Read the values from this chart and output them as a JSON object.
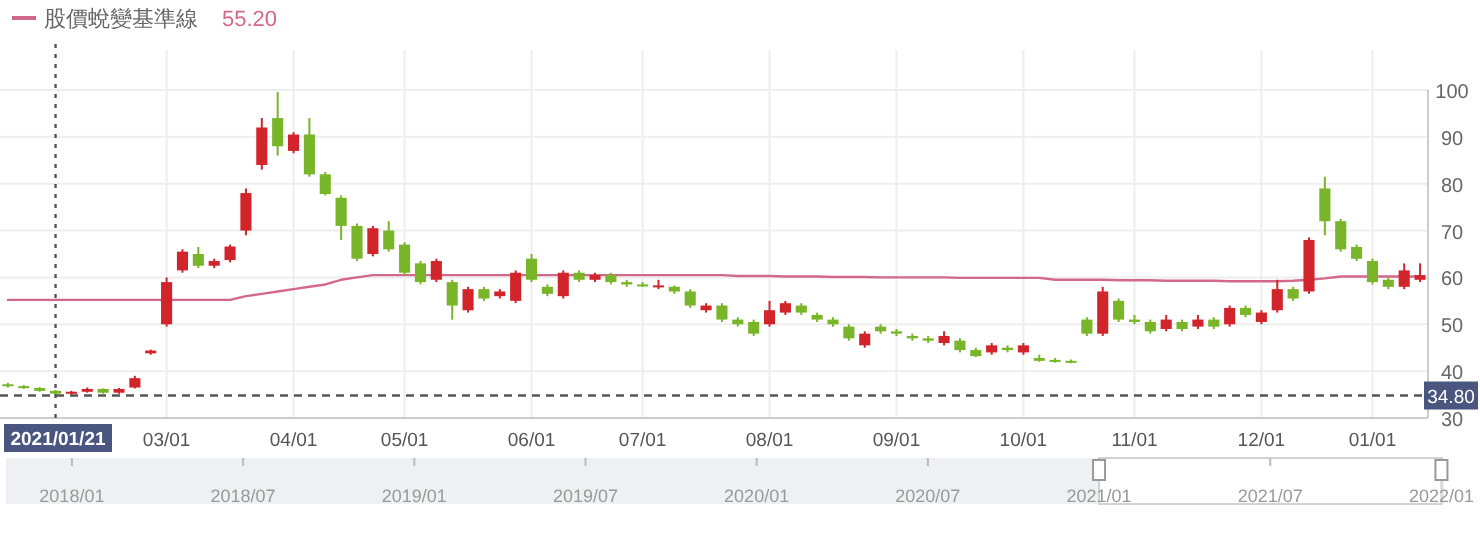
{
  "chart_data": [
    {
      "type": "candlestick",
      "categories": [
        null,
        null,
        null,
        "2021/01/21",
        null,
        null,
        null,
        null,
        null,
        null,
        "03/01",
        null,
        null,
        null,
        null,
        null,
        null,
        null,
        "04/01",
        null,
        null,
        null,
        null,
        null,
        null,
        "05/01",
        null,
        null,
        null,
        null,
        null,
        null,
        null,
        "06/01",
        null,
        null,
        null,
        null,
        null,
        null,
        "07/01",
        null,
        null,
        null,
        null,
        null,
        null,
        null,
        "08/01",
        null,
        null,
        null,
        null,
        null,
        null,
        null,
        "09/01",
        null,
        null,
        null,
        null,
        null,
        null,
        null,
        "10/01",
        null,
        null,
        null,
        null,
        null,
        null,
        "11/01",
        null,
        null,
        null,
        null,
        null,
        null,
        null,
        "12/01",
        null,
        null,
        null,
        null,
        null,
        null,
        "01/01",
        null,
        null,
        null
      ],
      "ohlc": [
        [
          37.2,
          37.5,
          36.5,
          36.8
        ],
        [
          36.8,
          37.0,
          36.2,
          36.4
        ],
        [
          36.4,
          36.6,
          35.6,
          35.8
        ],
        [
          35.8,
          36.0,
          34.8,
          35.2
        ],
        [
          35.2,
          35.8,
          35.0,
          35.6
        ],
        [
          35.6,
          36.5,
          35.4,
          36.2
        ],
        [
          36.2,
          36.3,
          35.2,
          35.4
        ],
        [
          35.4,
          36.4,
          35.2,
          36.2
        ],
        [
          36.5,
          39.0,
          36.3,
          38.5
        ],
        [
          43.8,
          44.6,
          43.5,
          44.4
        ],
        [
          50.0,
          60.0,
          49.5,
          59.0
        ],
        [
          61.5,
          66.0,
          61.0,
          65.5
        ],
        [
          65.0,
          66.5,
          62.0,
          62.5
        ],
        [
          62.5,
          64.0,
          62.0,
          63.5
        ],
        [
          63.7,
          67.0,
          63.2,
          66.6
        ],
        [
          70.0,
          79.0,
          69.0,
          78.0
        ],
        [
          84.0,
          94.0,
          83.0,
          92.0
        ],
        [
          94.0,
          99.6,
          86.0,
          88.0
        ],
        [
          87.0,
          91.0,
          86.5,
          90.5
        ],
        [
          90.5,
          94.0,
          81.5,
          82.0
        ],
        [
          82.0,
          82.5,
          77.5,
          77.8
        ],
        [
          77.0,
          77.5,
          68.0,
          71.0
        ],
        [
          71.0,
          71.5,
          63.5,
          64.0
        ],
        [
          65.0,
          71.0,
          64.5,
          70.5
        ],
        [
          70.0,
          72.0,
          65.5,
          66.0
        ],
        [
          67.0,
          67.5,
          60.5,
          61.0
        ],
        [
          63.0,
          63.5,
          58.5,
          59.0
        ],
        [
          59.5,
          64.0,
          59.0,
          63.5
        ],
        [
          59.0,
          59.5,
          51.0,
          54.0
        ],
        [
          53.0,
          58.0,
          52.5,
          57.5
        ],
        [
          57.5,
          58.0,
          55.0,
          55.5
        ],
        [
          56.0,
          57.5,
          55.5,
          57.0
        ],
        [
          55.0,
          61.5,
          54.5,
          61.0
        ],
        [
          64.0,
          65.0,
          59.0,
          59.5
        ],
        [
          58.0,
          58.5,
          56.0,
          56.5
        ],
        [
          56.0,
          61.5,
          55.5,
          61.0
        ],
        [
          61.0,
          61.5,
          59.0,
          59.5
        ],
        [
          59.5,
          61.0,
          59.0,
          60.5
        ],
        [
          60.5,
          61.0,
          58.5,
          59.0
        ],
        [
          59.0,
          59.5,
          58.0,
          58.5
        ],
        [
          58.5,
          59.0,
          58.0,
          58.2
        ],
        [
          57.9,
          59.5,
          57.5,
          58.3
        ],
        [
          58.0,
          58.3,
          56.5,
          57.0
        ],
        [
          57.0,
          57.5,
          53.5,
          54.0
        ],
        [
          53.0,
          54.5,
          52.5,
          54.0
        ],
        [
          54.0,
          54.5,
          50.5,
          51.0
        ],
        [
          51.0,
          51.5,
          49.5,
          50.0
        ],
        [
          50.5,
          51.0,
          47.5,
          48.0
        ],
        [
          50.0,
          55.0,
          49.5,
          53.0
        ],
        [
          52.5,
          55.0,
          52.0,
          54.5
        ],
        [
          54.0,
          54.5,
          52.0,
          52.5
        ],
        [
          52.0,
          52.5,
          50.5,
          51.0
        ],
        [
          51.0,
          51.5,
          49.5,
          50.0
        ],
        [
          49.5,
          50.0,
          46.5,
          47.0
        ],
        [
          45.5,
          48.5,
          45.0,
          48.0
        ],
        [
          49.5,
          50.0,
          48.0,
          48.5
        ],
        [
          48.5,
          49.0,
          47.5,
          48.0
        ],
        [
          47.5,
          48.0,
          46.5,
          47.0
        ],
        [
          47.0,
          47.5,
          46.0,
          46.5
        ],
        [
          46.0,
          48.5,
          45.5,
          47.5
        ],
        [
          46.5,
          47.0,
          44.0,
          44.5
        ],
        [
          44.5,
          45.0,
          43.0,
          43.2
        ],
        [
          44.0,
          46.0,
          43.5,
          45.5
        ],
        [
          45.0,
          45.5,
          44.0,
          44.5
        ],
        [
          44.0,
          46.0,
          43.5,
          45.5
        ],
        [
          42.8,
          43.5,
          42.0,
          42.2
        ],
        [
          42.4,
          42.8,
          41.8,
          42.1
        ],
        [
          42.2,
          42.5,
          41.7,
          42.0
        ],
        [
          51.0,
          51.5,
          47.5,
          48.0
        ],
        [
          48.0,
          58.0,
          47.5,
          57.0
        ],
        [
          55.0,
          55.5,
          50.5,
          51.0
        ],
        [
          51.0,
          52.0,
          50.0,
          50.5
        ],
        [
          50.5,
          51.0,
          48.0,
          48.5
        ],
        [
          49.0,
          52.0,
          48.5,
          51.0
        ],
        [
          50.5,
          51.0,
          48.5,
          49.0
        ],
        [
          49.5,
          52.0,
          49.0,
          51.0
        ],
        [
          51.0,
          51.5,
          49.0,
          49.5
        ],
        [
          50.0,
          54.0,
          49.5,
          53.5
        ],
        [
          53.5,
          54.0,
          51.5,
          52.0
        ],
        [
          50.5,
          53.0,
          50.0,
          52.5
        ],
        [
          53.0,
          59.5,
          52.5,
          57.5
        ],
        [
          57.5,
          58.0,
          55.0,
          55.5
        ],
        [
          57.0,
          68.5,
          56.5,
          68.0
        ],
        [
          79.0,
          81.5,
          69.0,
          72.0
        ],
        [
          72.0,
          72.5,
          65.5,
          66.0
        ],
        [
          66.5,
          67.0,
          63.5,
          64.0
        ],
        [
          63.5,
          64.0,
          58.5,
          59.0
        ],
        [
          59.5,
          60.0,
          57.5,
          58.0
        ],
        [
          58.0,
          63.0,
          57.5,
          61.5
        ],
        [
          59.5,
          63.0,
          59.0,
          60.5
        ]
      ],
      "colors": [
        "#79b528",
        "#79b528",
        "#79b528",
        "#79b528",
        "#d1242b",
        "#d1242b",
        "#79b528",
        "#d1242b",
        "#d1242b",
        "#d1242b",
        "#d1242b",
        "#d1242b",
        "#79b528",
        "#d1242b",
        "#d1242b",
        "#d1242b",
        "#d1242b",
        "#79b528",
        "#d1242b",
        "#79b528",
        "#79b528",
        "#79b528",
        "#79b528",
        "#d1242b",
        "#79b528",
        "#79b528",
        "#79b528",
        "#d1242b",
        "#79b528",
        "#d1242b",
        "#79b528",
        "#d1242b",
        "#d1242b",
        "#79b528",
        "#79b528",
        "#d1242b",
        "#79b528",
        "#d1242b",
        "#79b528",
        "#79b528",
        "#79b528",
        "#d1242b",
        "#79b528",
        "#79b528",
        "#d1242b",
        "#79b528",
        "#79b528",
        "#79b528",
        "#d1242b",
        "#d1242b",
        "#79b528",
        "#79b528",
        "#79b528",
        "#79b528",
        "#d1242b",
        "#79b528",
        "#79b528",
        "#79b528",
        "#79b528",
        "#d1242b",
        "#79b528",
        "#79b528",
        "#d1242b",
        "#79b528",
        "#d1242b",
        "#79b528",
        "#79b528",
        "#79b528",
        "#79b528",
        "#d1242b",
        "#79b528",
        "#79b528",
        "#79b528",
        "#d1242b",
        "#79b528",
        "#d1242b",
        "#79b528",
        "#d1242b",
        "#79b528",
        "#d1242b",
        "#d1242b",
        "#79b528",
        "#d1242b",
        "#79b528",
        "#79b528",
        "#79b528",
        "#79b528",
        "#79b528",
        "#d1242b",
        "#d1242b"
      ],
      "series": [
        {
          "name": "股價蛻變基準線",
          "type": "line",
          "color": "#d3698a",
          "values": [
            55.2,
            55.2,
            55.2,
            55.2,
            55.2,
            55.2,
            55.2,
            55.2,
            55.2,
            55.2,
            55.2,
            55.2,
            55.2,
            55.2,
            55.2,
            56.0,
            56.5,
            57.0,
            57.5,
            58.0,
            58.5,
            59.5,
            60.0,
            60.5,
            60.5,
            60.5,
            60.5,
            60.5,
            60.5,
            60.5,
            60.5,
            60.5,
            60.5,
            60.5,
            60.5,
            60.5,
            60.5,
            60.5,
            60.5,
            60.5,
            60.5,
            60.5,
            60.5,
            60.5,
            60.5,
            60.5,
            60.3,
            60.3,
            60.3,
            60.2,
            60.2,
            60.2,
            60.1,
            60.1,
            60.1,
            60.0,
            60.0,
            60.0,
            60.0,
            60.0,
            59.9,
            59.9,
            59.9,
            59.9,
            59.9,
            59.9,
            59.5,
            59.5,
            59.5,
            59.5,
            59.4,
            59.4,
            59.4,
            59.3,
            59.3,
            59.3,
            59.3,
            59.2,
            59.2,
            59.2,
            59.2,
            59.3,
            59.5,
            59.8,
            60.2,
            60.2,
            60.2,
            60.2,
            60.2,
            60.2
          ]
        }
      ],
      "ylim": [
        30,
        100
      ],
      "yticks": [
        30,
        40,
        50,
        60,
        70,
        80,
        90,
        100
      ],
      "grid": true,
      "legend": "top left",
      "ref_lines": [
        {
          "axis": "x",
          "value": "2021/01/21",
          "line_style": "dotted",
          "color": "#555555"
        },
        {
          "axis": "y",
          "value": 34.8,
          "label": "34.80",
          "line_style": "dashed",
          "color": "#555555"
        }
      ],
      "annotations": [
        "55.20"
      ]
    },
    {
      "type": "other",
      "categories": [
        "2018/01",
        "2018/07",
        "2019/01",
        "2019/07",
        "2020/01",
        "2020/07",
        "2021/01",
        "2021/07",
        "2022/01"
      ]
    }
  ]
}
